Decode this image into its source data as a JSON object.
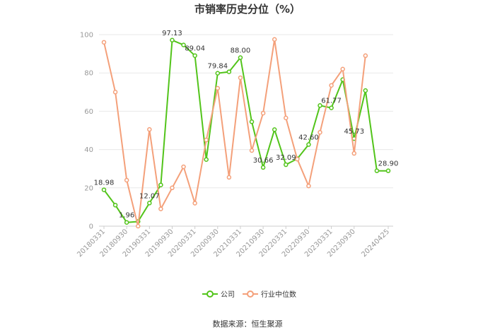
{
  "chart_data": {
    "type": "line",
    "title": "市销率历史分位（%）",
    "xlabel": "",
    "ylabel": "",
    "ylim": [
      0,
      100
    ],
    "yticks": [
      0,
      20,
      40,
      60,
      80,
      100
    ],
    "grid": true,
    "legend_position": "bottom",
    "x": [
      "20180331",
      "20180630",
      "20180930",
      "20181231",
      "20190331",
      "20190630",
      "20190930",
      "20191231",
      "20200331",
      "20200630",
      "20200930",
      "20201231",
      "20210331",
      "20210630",
      "20210930",
      "20211231",
      "20220331",
      "20220630",
      "20220930",
      "20221231",
      "20230331",
      "20230630",
      "20230930",
      "20231231",
      "20240331",
      "20240425"
    ],
    "x_tick_labels": [
      "20180331",
      "20180930",
      "20190331",
      "20190930",
      "20200331",
      "20200930",
      "20210331",
      "20210930",
      "20220331",
      "20220930",
      "20230331",
      "20230930",
      "20240425"
    ],
    "series": [
      {
        "name": "公司",
        "color": "#52c41a",
        "values": [
          18.98,
          11.0,
          1.96,
          2.4,
          12.07,
          21.5,
          97.13,
          94.6,
          89.04,
          34.8,
          79.84,
          80.6,
          88.0,
          54.5,
          30.66,
          50.4,
          32.09,
          35.2,
          42.6,
          63.0,
          61.77,
          76.5,
          45.73,
          70.8,
          28.9,
          28.9
        ],
        "data_labels": {
          "0": "18.98",
          "2": "1.96",
          "4": "12.07",
          "6": "97.13",
          "8": "89.04",
          "10": "79.84",
          "12": "88.00",
          "14": "30.66",
          "16": "32.09",
          "18": "42.60",
          "20": "61.77",
          "22": "45.73",
          "25": "28.90"
        }
      },
      {
        "name": "行业中位数",
        "color": "#f4a07a",
        "values": [
          96.0,
          70.0,
          24.0,
          0.0,
          50.5,
          9.0,
          20.0,
          31.0,
          12.0,
          45.0,
          72.0,
          25.5,
          77.5,
          39.5,
          59.0,
          97.5,
          56.5,
          35.0,
          21.0,
          49.0,
          73.5,
          82.0,
          38.0,
          89.0,
          null,
          null
        ]
      }
    ],
    "source": "数据来源：恒生聚源"
  }
}
